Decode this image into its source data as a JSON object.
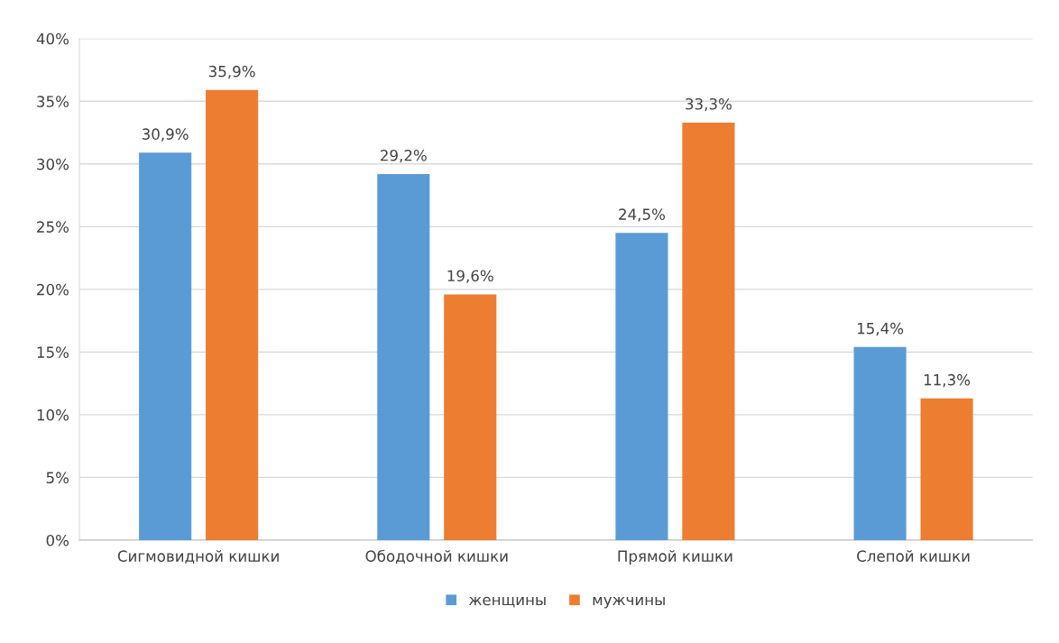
{
  "chart_data": {
    "type": "bar",
    "categories": [
      "Сигмовидной кишки",
      "Ободочной кишки",
      "Прямой кишки",
      "Слепой кишки"
    ],
    "series": [
      {
        "name": "женщины",
        "color": "#5b9bd5",
        "values": [
          30.9,
          29.2,
          24.5,
          15.4
        ],
        "value_labels": [
          "30,9%",
          "29,2%",
          "24,5%",
          "15,4%"
        ]
      },
      {
        "name": "мужчины",
        "color": "#ed7d31",
        "values": [
          35.9,
          19.6,
          33.3,
          11.3
        ],
        "value_labels": [
          "35,9%",
          "19,6%",
          "33,3%",
          "11,3%"
        ]
      }
    ],
    "ylim": [
      0,
      40
    ],
    "yticks": [
      {
        "value": 0,
        "label": "0%"
      },
      {
        "value": 5,
        "label": "5%"
      },
      {
        "value": 10,
        "label": "10%"
      },
      {
        "value": 15,
        "label": "15%"
      },
      {
        "value": 20,
        "label": "20%"
      },
      {
        "value": 25,
        "label": "25%"
      },
      {
        "value": 30,
        "label": "30%"
      },
      {
        "value": 35,
        "label": "35%"
      },
      {
        "value": 40,
        "label": "40%"
      }
    ],
    "grid": "y",
    "legend": "bottom"
  }
}
